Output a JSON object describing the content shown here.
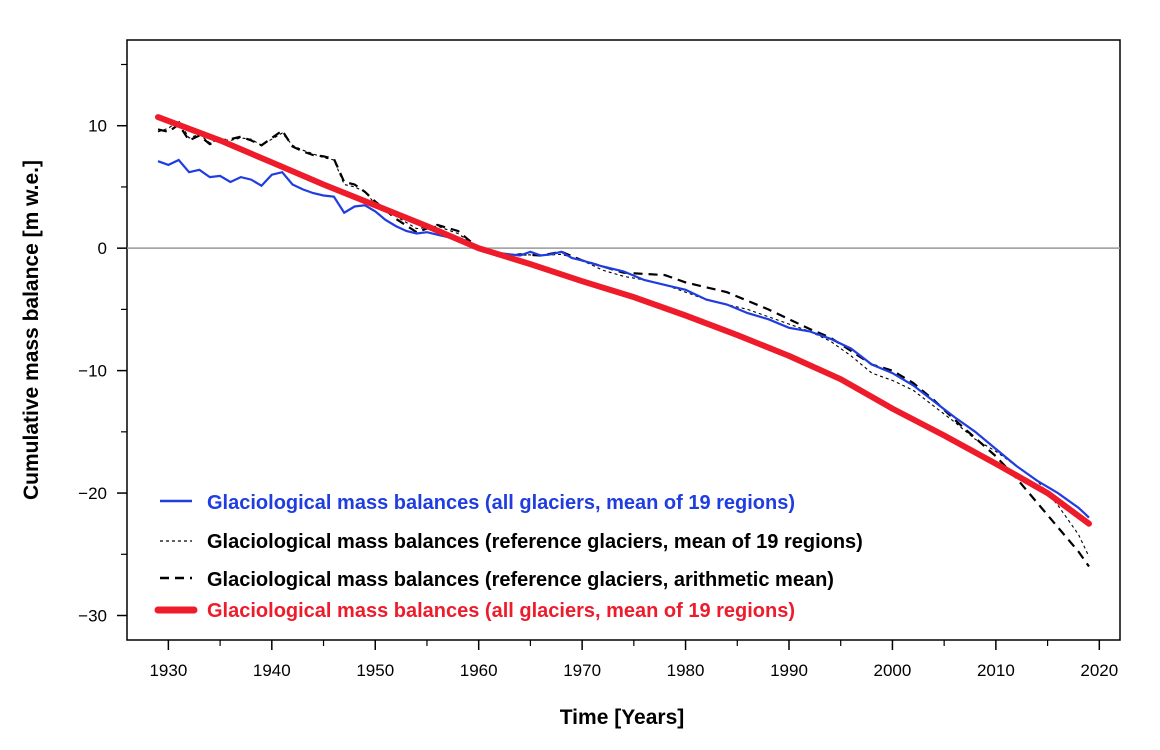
{
  "chart_data": {
    "type": "line",
    "xlabel": "Time [Years]",
    "ylabel": "Cumulative mass balance [m w.e.]",
    "xlim": [
      1926,
      2022
    ],
    "ylim": [
      -32,
      17
    ],
    "xticks": [
      1930,
      1940,
      1950,
      1960,
      1970,
      1980,
      1990,
      2000,
      2010,
      2020
    ],
    "yticks": [
      10,
      0,
      -10,
      -20,
      -30
    ],
    "xminor": [
      1925,
      1935,
      1945,
      1955,
      1965,
      1975,
      1985,
      1995,
      2005,
      2015
    ],
    "yminor": [
      15,
      5,
      -5,
      -15,
      -25
    ],
    "grid": false,
    "zero_line": true,
    "legend_position": "bottom-left",
    "series": [
      {
        "name": "Glaciological mass balances (all glaciers, mean of 19 regions)",
        "color": "#1f3de0",
        "style": "solid",
        "x": [
          1929,
          1930,
          1931,
          1932,
          1933,
          1934,
          1935,
          1936,
          1937,
          1938,
          1939,
          1940,
          1941,
          1942,
          1943,
          1944,
          1945,
          1946,
          1947,
          1948,
          1949,
          1950,
          1951,
          1952,
          1953,
          1954,
          1955,
          1956,
          1957,
          1958,
          1959,
          1960,
          1961,
          1962,
          1963,
          1964,
          1965,
          1966,
          1967,
          1968,
          1969,
          1970,
          1972,
          1974,
          1976,
          1978,
          1980,
          1982,
          1984,
          1986,
          1988,
          1990,
          1992,
          1994,
          1996,
          1998,
          2000,
          2002,
          2004,
          2006,
          2008,
          2010,
          2012,
          2014,
          2016,
          2018,
          2019
        ],
        "y": [
          7.1,
          6.8,
          7.2,
          6.2,
          6.4,
          5.8,
          5.9,
          5.4,
          5.8,
          5.6,
          5.1,
          6.0,
          6.2,
          5.2,
          4.8,
          4.5,
          4.3,
          4.2,
          2.9,
          3.4,
          3.5,
          3.0,
          2.3,
          1.8,
          1.4,
          1.2,
          1.3,
          1.1,
          0.9,
          0.6,
          0.3,
          0.0,
          -0.2,
          -0.4,
          -0.5,
          -0.6,
          -0.3,
          -0.6,
          -0.5,
          -0.3,
          -0.8,
          -1.0,
          -1.5,
          -1.9,
          -2.6,
          -3.0,
          -3.4,
          -4.2,
          -4.6,
          -5.3,
          -5.8,
          -6.5,
          -6.8,
          -7.4,
          -8.2,
          -9.5,
          -10.2,
          -11.2,
          -12.5,
          -13.8,
          -15.0,
          -16.4,
          -17.8,
          -19.0,
          -20.0,
          -21.2,
          -22.0
        ]
      },
      {
        "name": "Glaciological mass balances (reference glaciers, mean of 19 regions)",
        "color": "#000000",
        "style": "dotted",
        "x": [
          1929,
          1930,
          1931,
          1932,
          1933,
          1934,
          1935,
          1936,
          1937,
          1938,
          1939,
          1940,
          1941,
          1942,
          1943,
          1944,
          1945,
          1946,
          1947,
          1948,
          1949,
          1950,
          1952,
          1954,
          1956,
          1958,
          1960,
          1962,
          1964,
          1966,
          1968,
          1970,
          1972,
          1974,
          1976,
          1978,
          1980,
          1982,
          1984,
          1986,
          1988,
          1990,
          1992,
          1994,
          1996,
          1998,
          2000,
          2002,
          2004,
          2006,
          2008,
          2010,
          2012,
          2014,
          2016,
          2018,
          2019
        ],
        "y": [
          9.5,
          9.8,
          10.4,
          9.0,
          9.3,
          8.6,
          8.9,
          8.8,
          9.0,
          8.9,
          8.4,
          8.9,
          9.4,
          8.4,
          8.0,
          7.7,
          7.4,
          7.2,
          5.2,
          5.0,
          4.6,
          3.6,
          2.6,
          1.6,
          1.8,
          1.2,
          0.0,
          -0.5,
          -0.5,
          -0.6,
          -0.5,
          -1.0,
          -1.8,
          -2.3,
          -2.6,
          -3.0,
          -3.6,
          -4.2,
          -4.6,
          -5.0,
          -5.6,
          -6.2,
          -6.8,
          -7.6,
          -8.8,
          -10.2,
          -10.8,
          -11.6,
          -12.9,
          -14.2,
          -15.6,
          -16.6,
          -17.8,
          -19.0,
          -21.0,
          -23.4,
          -25.2
        ]
      },
      {
        "name": "Glaciological mass balances (reference glaciers, arithmetic mean)",
        "color": "#000000",
        "style": "dashed",
        "x": [
          1929,
          1930,
          1931,
          1932,
          1933,
          1934,
          1935,
          1936,
          1937,
          1938,
          1939,
          1940,
          1941,
          1942,
          1943,
          1944,
          1945,
          1946,
          1947,
          1948,
          1949,
          1950,
          1952,
          1954,
          1956,
          1958,
          1960,
          1962,
          1964,
          1966,
          1968,
          1970,
          1972,
          1974,
          1976,
          1978,
          1980,
          1982,
          1984,
          1986,
          1988,
          1990,
          1992,
          1994,
          1996,
          1998,
          2000,
          2002,
          2004,
          2006,
          2008,
          2010,
          2012,
          2014,
          2016,
          2018,
          2019
        ],
        "y": [
          9.7,
          9.5,
          10.1,
          8.8,
          9.2,
          8.5,
          8.8,
          8.9,
          9.1,
          8.8,
          8.4,
          9.0,
          9.6,
          8.3,
          7.9,
          7.6,
          7.5,
          7.3,
          5.4,
          5.2,
          4.6,
          3.8,
          2.4,
          1.3,
          1.9,
          1.4,
          0.0,
          -0.7,
          -0.5,
          -0.6,
          -0.3,
          -1.0,
          -1.5,
          -2.0,
          -2.1,
          -2.2,
          -2.8,
          -3.2,
          -3.6,
          -4.3,
          -5.0,
          -5.8,
          -6.6,
          -7.3,
          -8.4,
          -9.5,
          -10.0,
          -11.0,
          -12.4,
          -14.0,
          -15.5,
          -17.0,
          -18.8,
          -20.8,
          -22.8,
          -24.8,
          -26.0
        ]
      },
      {
        "name": "Glaciological mass balances (all glaciers, mean of 19 regions)",
        "color": "#ee1c2b",
        "style": "thick",
        "x": [
          1929,
          1935,
          1940,
          1945,
          1950,
          1955,
          1960,
          1965,
          1970,
          1975,
          1980,
          1985,
          1990,
          1995,
          2000,
          2005,
          2010,
          2015,
          2019
        ],
        "y": [
          10.7,
          8.8,
          7.0,
          5.2,
          3.5,
          1.8,
          0.0,
          -1.3,
          -2.7,
          -4.0,
          -5.5,
          -7.1,
          -8.8,
          -10.7,
          -13.1,
          -15.3,
          -17.6,
          -20.0,
          -22.5
        ]
      }
    ]
  }
}
